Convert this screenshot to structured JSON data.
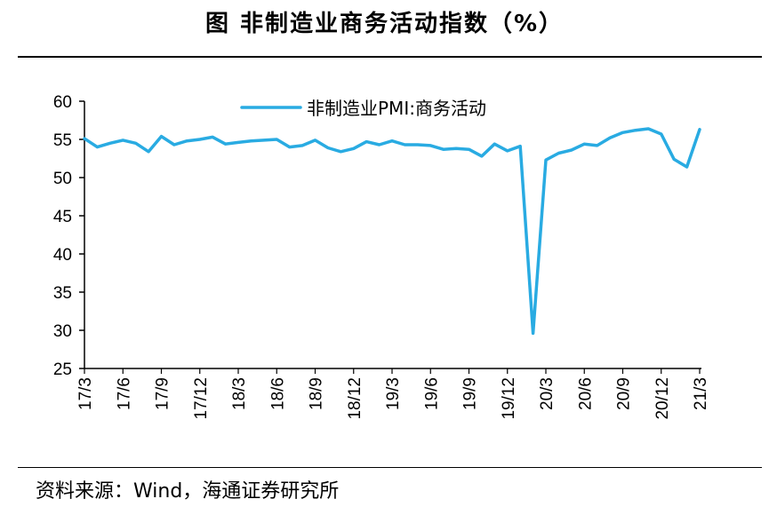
{
  "title": "图  非制造业商务活动指数（%）",
  "source": "资料来源：Wind，海通证券研究所",
  "colors": {
    "series": "#29abe2",
    "axis": "#000000"
  },
  "chart_data": {
    "type": "line",
    "title": "图  非制造业商务活动指数（%）",
    "legend_position": "top-center",
    "grid": false,
    "ylim": [
      25,
      60
    ],
    "y_ticks": [
      "60",
      "55",
      "50",
      "45",
      "40",
      "35",
      "30",
      "25"
    ],
    "x_tick_labels": [
      "17/3",
      "17/6",
      "17/9",
      "17/12",
      "18/3",
      "18/6",
      "18/9",
      "18/12",
      "19/3",
      "19/6",
      "19/9",
      "19/12",
      "20/3",
      "20/6",
      "20/9",
      "20/12",
      "21/3"
    ],
    "x": [
      "17/3",
      "17/4",
      "17/5",
      "17/6",
      "17/7",
      "17/8",
      "17/9",
      "17/10",
      "17/11",
      "17/12",
      "18/1",
      "18/2",
      "18/3",
      "18/4",
      "18/5",
      "18/6",
      "18/7",
      "18/8",
      "18/9",
      "18/10",
      "18/11",
      "18/12",
      "19/1",
      "19/2",
      "19/3",
      "19/4",
      "19/5",
      "19/6",
      "19/7",
      "19/8",
      "19/9",
      "19/10",
      "19/11",
      "19/12",
      "20/1",
      "20/2",
      "20/3",
      "20/4",
      "20/5",
      "20/6",
      "20/7",
      "20/8",
      "20/9",
      "20/10",
      "20/11",
      "20/12",
      "21/1",
      "21/2",
      "21/3"
    ],
    "series": [
      {
        "name": "非制造业PMI:商务活动",
        "values": [
          55.1,
          54.0,
          54.5,
          54.9,
          54.5,
          53.4,
          55.4,
          54.3,
          54.8,
          55.0,
          55.3,
          54.4,
          54.6,
          54.8,
          54.9,
          55.0,
          54.0,
          54.2,
          54.9,
          53.9,
          53.4,
          53.8,
          54.7,
          54.3,
          54.8,
          54.3,
          54.3,
          54.2,
          53.7,
          53.8,
          53.7,
          52.8,
          54.4,
          53.5,
          54.1,
          29.6,
          52.3,
          53.2,
          53.6,
          54.4,
          54.2,
          55.2,
          55.9,
          56.2,
          56.4,
          55.7,
          52.4,
          51.4,
          56.3
        ]
      }
    ]
  }
}
